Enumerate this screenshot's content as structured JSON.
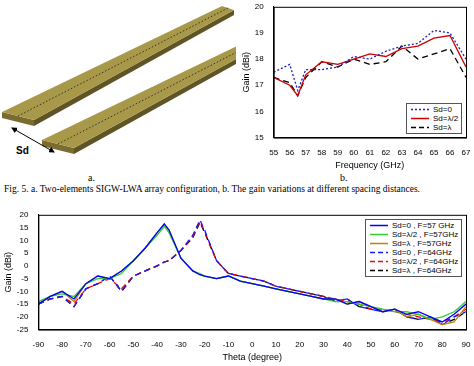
{
  "panel_a": {
    "label": "a.",
    "spacing_label": "Sd"
  },
  "chart_data": [
    {
      "type": "line",
      "panel_label": "b.",
      "xlabel": "Frequency (GHz)",
      "ylabel": "Gain (dBi)",
      "x": [
        55,
        56,
        56.5,
        57,
        58,
        59,
        60,
        61,
        62,
        63,
        64,
        65,
        66,
        67
      ],
      "series": [
        {
          "name": "Sd=0",
          "color": "#1f1fbf",
          "line_style": "dotted",
          "values": [
            17.5,
            17.8,
            16.8,
            17.6,
            17.6,
            17.7,
            18.1,
            18.0,
            18.3,
            18.5,
            18.6,
            19.1,
            19.0,
            18.0
          ]
        },
        {
          "name": "Sd=λ/2",
          "color": "#cc0000",
          "line_style": "solid",
          "values": [
            17.3,
            17.0,
            16.6,
            17.4,
            17.9,
            17.8,
            18.0,
            18.2,
            18.1,
            18.4,
            18.5,
            18.8,
            18.9,
            17.7
          ]
        },
        {
          "name": "Sd=λ",
          "color": "#000000",
          "line_style": "dashed",
          "values": [
            17.3,
            17.1,
            16.6,
            17.3,
            17.9,
            17.7,
            18.0,
            17.8,
            17.9,
            18.5,
            18.0,
            18.2,
            18.4,
            17.3
          ]
        }
      ],
      "xlim": [
        55,
        67
      ],
      "xticks": [
        55,
        56,
        57,
        58,
        59,
        60,
        61,
        62,
        63,
        64,
        65,
        66,
        67
      ],
      "ylim": [
        15,
        20
      ],
      "yticks": [
        15,
        16,
        17,
        18,
        19,
        20
      ],
      "grid": false,
      "legend": "lower right"
    },
    {
      "type": "line",
      "xlabel": "Theta (degree)",
      "ylabel": "Gain (dBi)",
      "x": [
        -90,
        -85,
        -80,
        -75,
        -70,
        -65,
        -60,
        -55,
        -50,
        -45,
        -40,
        -37,
        -35,
        -30,
        -25,
        -22,
        -20,
        -15,
        -10,
        -5,
        0,
        5,
        10,
        15,
        20,
        25,
        30,
        35,
        40,
        45,
        50,
        55,
        60,
        65,
        70,
        75,
        80,
        85,
        90
      ],
      "series": [
        {
          "name": "Sd=0 , F=57 GHz",
          "color": "#0000ff",
          "line_style": "solid",
          "values": [
            -15,
            -12,
            -10,
            -13,
            -7,
            -4,
            -5,
            -2,
            2,
            7,
            13,
            16.5,
            14,
            3,
            -2,
            -3.5,
            -4,
            -5,
            -4,
            -6,
            -7,
            -8,
            -9,
            -10,
            -11,
            -12,
            -13,
            -13,
            -15,
            -14,
            -16,
            -18,
            -17,
            -19,
            -18,
            -20,
            -22,
            -19,
            -15
          ]
        },
        {
          "name": "Sd=λ/2 , F=57GHz",
          "color": "#33cc33",
          "line_style": "solid",
          "values": [
            -14,
            -12,
            -11,
            -12,
            -7,
            -5,
            -5,
            -3,
            2,
            7,
            12,
            15.5,
            13,
            3,
            -2,
            -3,
            -4,
            -5,
            -4,
            -6,
            -7,
            -8,
            -9,
            -10,
            -11,
            -12,
            -13,
            -14,
            -14,
            -15,
            -16,
            -17,
            -18,
            -18,
            -19,
            -21,
            -20,
            -18,
            -14
          ]
        },
        {
          "name": "Sd=λ , F=57GHz",
          "color": "#b8860b",
          "line_style": "solid",
          "values": [
            -15,
            -12,
            -10,
            -14,
            -7,
            -4,
            -5,
            -2,
            2,
            7,
            13,
            16,
            14,
            3,
            -2,
            -3.5,
            -4,
            -5,
            -4,
            -6,
            -7,
            -8,
            -9,
            -10,
            -11,
            -12,
            -13,
            -13,
            -15,
            -14,
            -16,
            -18,
            -17,
            -20,
            -19,
            -21,
            -23,
            -22,
            -16
          ]
        },
        {
          "name": "Sd=0 , F=64GHz",
          "color": "#1a1aff",
          "line_style": "dashed",
          "values": [
            -15,
            -13,
            -12,
            -16,
            -9,
            -7,
            -4,
            -10,
            -4,
            -2,
            0,
            1.5,
            2,
            6,
            12,
            18,
            14,
            2,
            -3,
            -4,
            -5,
            -6,
            -8,
            -9,
            -10,
            -11,
            -12,
            -14,
            -13,
            -16,
            -17,
            -18,
            -17,
            -20,
            -21,
            -20,
            -23,
            -20,
            -18
          ]
        },
        {
          "name": "Sd=λ/2 , F=64GHz",
          "color": "#ff0000",
          "line_style": "dashed",
          "values": [
            -15,
            -13,
            -12,
            -15,
            -9,
            -7,
            -5,
            -9,
            -4,
            -2,
            0,
            1.5,
            2,
            6,
            11.5,
            17.5,
            13.5,
            2,
            -3,
            -4,
            -5,
            -6,
            -8,
            -9,
            -10,
            -11,
            -12,
            -13,
            -14,
            -15,
            -17,
            -17,
            -18,
            -19,
            -20,
            -21,
            -22,
            -20,
            -17
          ]
        },
        {
          "name": "Sd=λ , F=64GHz",
          "color": "#000000",
          "line_style": "dashed",
          "values": [
            -15,
            -13,
            -12,
            -16,
            -9,
            -7,
            -4,
            -10,
            -4,
            -2,
            0,
            1.5,
            2,
            6,
            11,
            17,
            13,
            2,
            -3,
            -4,
            -5,
            -6,
            -8,
            -9,
            -10,
            -11,
            -12,
            -14,
            -13,
            -16,
            -17,
            -18,
            -17,
            -20,
            -21,
            -20,
            -23,
            -21,
            -18
          ]
        }
      ],
      "xlim": [
        -90,
        90
      ],
      "xticks": [
        -90,
        -80,
        -70,
        -60,
        -50,
        -40,
        -30,
        -20,
        -10,
        0,
        10,
        20,
        30,
        40,
        50,
        60,
        70,
        80,
        90
      ],
      "ylim": [
        -25,
        20
      ],
      "yticks": [
        -25,
        -20,
        -15,
        -10,
        -5,
        0,
        5,
        10,
        15,
        20
      ],
      "grid": false,
      "legend": "upper right"
    }
  ],
  "captions": [
    "Fig. 5. a. Two-elements SIGW-LWA array configuration, b. The gain variations at different spacing distances."
  ]
}
